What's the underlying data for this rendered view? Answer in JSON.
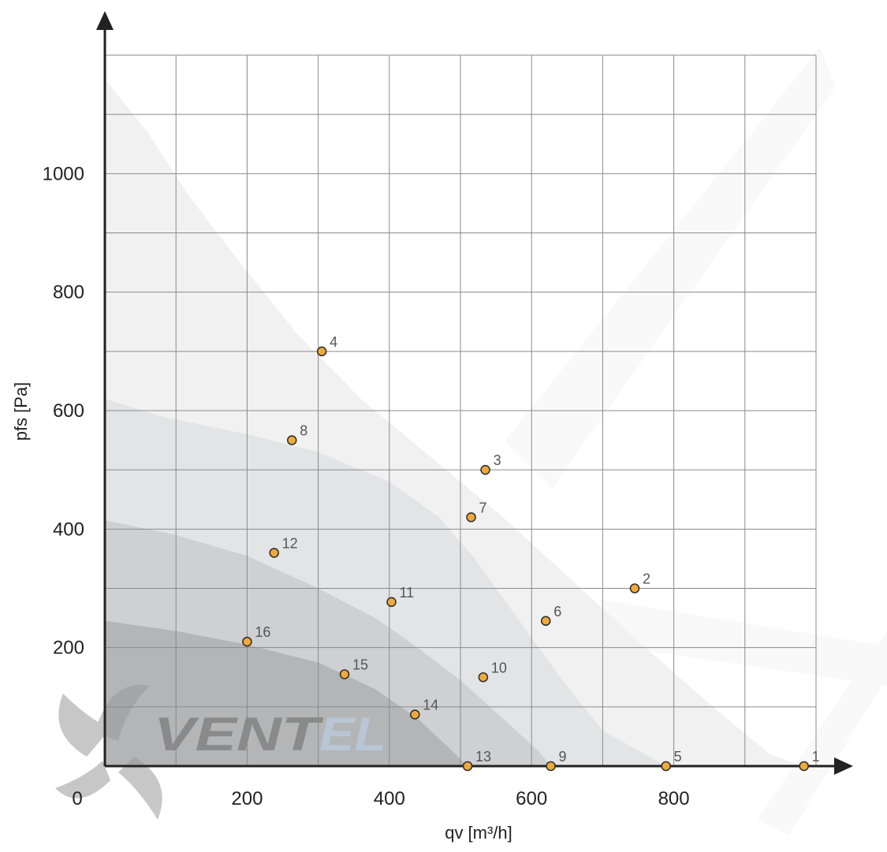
{
  "chart_data": {
    "type": "scatter",
    "title": "",
    "xlabel": "qv [m³/h]",
    "ylabel": "pfs [Pa]",
    "xlim": [
      0,
      1000
    ],
    "ylim": [
      0,
      1200
    ],
    "x_ticks": [
      {
        "value": 0,
        "label": "0"
      },
      {
        "value": 200,
        "label": "200"
      },
      {
        "value": 400,
        "label": "400"
      },
      {
        "value": 600,
        "label": "600"
      },
      {
        "value": 800,
        "label": "800"
      }
    ],
    "y_ticks": [
      {
        "value": 200,
        "label": "200"
      },
      {
        "value": 400,
        "label": "400"
      },
      {
        "value": 600,
        "label": "600"
      },
      {
        "value": 800,
        "label": "800"
      },
      {
        "value": 1000,
        "label": "1000"
      }
    ],
    "grid": true,
    "grid_step": {
      "x": 100,
      "y": 100
    },
    "points": [
      {
        "label": "1",
        "x": 983,
        "y": 0
      },
      {
        "label": "2",
        "x": 745,
        "y": 300
      },
      {
        "label": "3",
        "x": 535,
        "y": 500
      },
      {
        "label": "4",
        "x": 305,
        "y": 700
      },
      {
        "label": "5",
        "x": 789,
        "y": 0
      },
      {
        "label": "6",
        "x": 620,
        "y": 245
      },
      {
        "label": "7",
        "x": 515,
        "y": 420
      },
      {
        "label": "8",
        "x": 263,
        "y": 550
      },
      {
        "label": "9",
        "x": 627,
        "y": 0
      },
      {
        "label": "10",
        "x": 532,
        "y": 150
      },
      {
        "label": "11",
        "x": 403,
        "y": 277
      },
      {
        "label": "12",
        "x": 238,
        "y": 360
      },
      {
        "label": "13",
        "x": 510,
        "y": 0
      },
      {
        "label": "14",
        "x": 436,
        "y": 87
      },
      {
        "label": "15",
        "x": 337,
        "y": 155
      },
      {
        "label": "16",
        "x": 200,
        "y": 210
      }
    ],
    "bands": [
      {
        "name": "",
        "color": "#f0f1f0",
        "curve": [
          [
            0,
            1160
          ],
          [
            60,
            1070
          ],
          [
            120,
            960
          ],
          [
            190,
            850
          ],
          [
            270,
            730
          ],
          [
            360,
            620
          ],
          [
            460,
            520
          ],
          [
            560,
            420
          ],
          [
            660,
            310
          ],
          [
            760,
            200
          ],
          [
            860,
            95
          ],
          [
            935,
            20
          ],
          [
            983,
            0
          ]
        ]
      },
      {
        "name": "",
        "color": "#e3e4e5",
        "curve": [
          [
            0,
            620
          ],
          [
            80,
            590
          ],
          [
            200,
            560
          ],
          [
            300,
            530
          ],
          [
            400,
            480
          ],
          [
            470,
            420
          ],
          [
            520,
            350
          ],
          [
            580,
            250
          ],
          [
            640,
            150
          ],
          [
            700,
            60
          ],
          [
            789,
            0
          ]
        ]
      },
      {
        "name": "",
        "color": "#cfd0d2",
        "curve": [
          [
            0,
            415
          ],
          [
            100,
            390
          ],
          [
            200,
            355
          ],
          [
            300,
            300
          ],
          [
            380,
            250
          ],
          [
            440,
            200
          ],
          [
            500,
            145
          ],
          [
            560,
            80
          ],
          [
            610,
            25
          ],
          [
            627,
            0
          ]
        ]
      },
      {
        "name": "",
        "color": "#b4b5b7",
        "curve": [
          [
            0,
            245
          ],
          [
            100,
            228
          ],
          [
            200,
            205
          ],
          [
            300,
            175
          ],
          [
            380,
            130
          ],
          [
            440,
            80
          ],
          [
            480,
            35
          ],
          [
            510,
            0
          ]
        ]
      }
    ],
    "colors": {
      "point_fill": "#f0aa3a",
      "point_stroke": "#333333",
      "grid": "#8a8a8a",
      "axis": "#222222"
    }
  },
  "logo": {
    "text_left": "VENT",
    "text_right": "EL",
    "color_left": "#8a8a8a",
    "color_right": "#b9c6d6"
  }
}
